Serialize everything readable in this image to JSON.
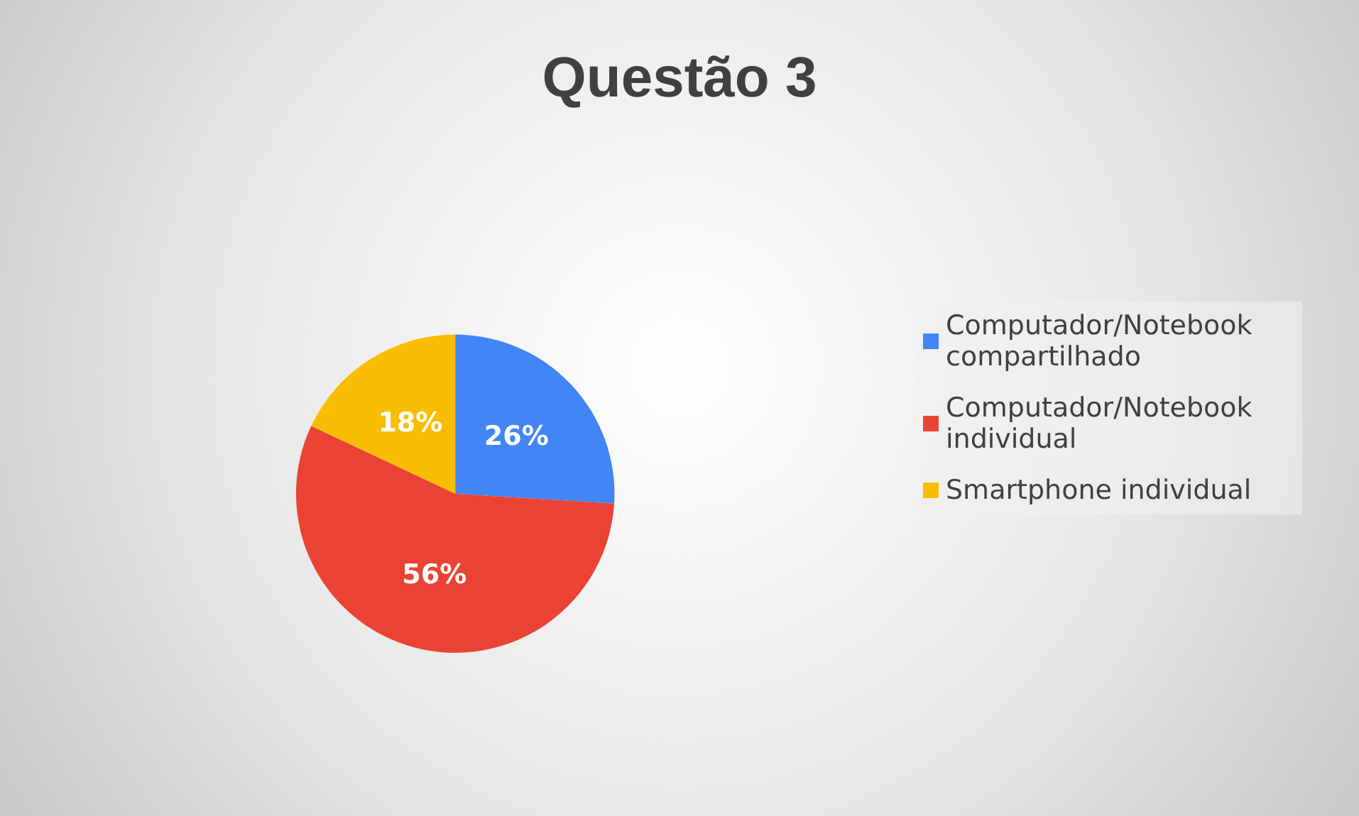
{
  "chart_data": {
    "type": "pie",
    "title": "Questão 3",
    "categories": [
      "Computador/Notebook compartilhado",
      "Computador/Notebook individual",
      "Smartphone individual"
    ],
    "values": [
      26,
      56,
      18
    ],
    "colors": [
      "#4285f4",
      "#ea4335",
      "#fbbc04"
    ],
    "value_labels": [
      "26%",
      "56%",
      "18%"
    ],
    "legend": "right"
  }
}
